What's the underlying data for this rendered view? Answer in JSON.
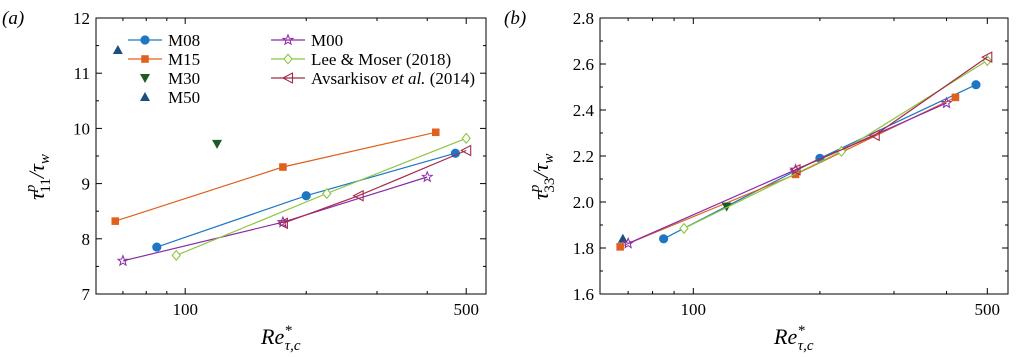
{
  "chart_data": [
    {
      "panel_label": "(a)",
      "type": "line",
      "x_scale": "log",
      "xlim": [
        60,
        560
      ],
      "ylim": [
        7,
        12
      ],
      "xticks": [
        100,
        500
      ],
      "yticks": [
        7,
        8,
        9,
        10,
        11,
        12
      ],
      "ylabel": {
        "base": "τ",
        "sup": "p",
        "sub": "11",
        "tail": "/τ",
        "tail_sub": "w"
      },
      "xlabel": {
        "base": "Re",
        "sup": "*",
        "sub": "τ,c"
      },
      "series": [
        {
          "name": "M08",
          "color": "#1f77c4",
          "marker": "circle",
          "line": true,
          "x": [
            85,
            200,
            470
          ],
          "y": [
            7.85,
            8.78,
            9.55
          ]
        },
        {
          "name": "M15",
          "color": "#e0601e",
          "marker": "square",
          "line": true,
          "x": [
            67,
            175,
            420
          ],
          "y": [
            8.32,
            9.3,
            9.93
          ]
        },
        {
          "name": "M30",
          "color": "#1d5a24",
          "marker": "triangle-down",
          "line": false,
          "x": [
            120
          ],
          "y": [
            9.72
          ]
        },
        {
          "name": "M50",
          "color": "#1a4f80",
          "marker": "triangle-up",
          "line": false,
          "x": [
            68
          ],
          "y": [
            11.42
          ]
        },
        {
          "name": "M00",
          "color": "#8a2ba8",
          "marker": "star",
          "line": true,
          "x": [
            70,
            175,
            400
          ],
          "y": [
            7.6,
            8.3,
            9.12
          ]
        },
        {
          "name": "Lee & Moser (2018)",
          "color": "#8cc63f",
          "marker": "diamond-open",
          "line": true,
          "x": [
            95,
            225,
            500
          ],
          "y": [
            7.7,
            8.82,
            9.82
          ]
        },
        {
          "name": "Avsarkisov et al. (2014)",
          "color": "#a52a4a",
          "marker": "triangle-left-open",
          "line": true,
          "x": [
            175,
            270,
            500
          ],
          "y": [
            8.28,
            8.78,
            9.6
          ]
        }
      ],
      "legend": {
        "placement": "top-left",
        "columns": [
          [
            "M08",
            "M15",
            "M30",
            "M50"
          ],
          [
            "M00",
            "Lee & Moser (2018)",
            "Avsarkisov et al. (2014)"
          ]
        ]
      }
    },
    {
      "panel_label": "(b)",
      "type": "line",
      "x_scale": "log",
      "xlim": [
        60,
        560
      ],
      "ylim": [
        1.6,
        2.8
      ],
      "xticks": [
        100,
        500
      ],
      "yticks": [
        1.6,
        1.8,
        2.0,
        2.2,
        2.4,
        2.6,
        2.8
      ],
      "ylabel": {
        "base": "τ",
        "sup": "p",
        "sub": "33",
        "tail": "/τ",
        "tail_sub": "w"
      },
      "xlabel": {
        "base": "Re",
        "sup": "*",
        "sub": "τ,c"
      },
      "series": [
        {
          "name": "M08",
          "color": "#1f77c4",
          "marker": "circle",
          "line": true,
          "x": [
            85,
            200,
            470
          ],
          "y": [
            1.84,
            2.19,
            2.51
          ]
        },
        {
          "name": "M15",
          "color": "#e0601e",
          "marker": "square",
          "line": true,
          "x": [
            67,
            175,
            420
          ],
          "y": [
            1.805,
            2.12,
            2.455
          ]
        },
        {
          "name": "M30",
          "color": "#1d5a24",
          "marker": "triangle-down",
          "line": false,
          "x": [
            120
          ],
          "y": [
            1.98
          ]
        },
        {
          "name": "M50",
          "color": "#1a4f80",
          "marker": "triangle-up",
          "line": false,
          "x": [
            68
          ],
          "y": [
            1.84
          ]
        },
        {
          "name": "M00",
          "color": "#8a2ba8",
          "marker": "star",
          "line": true,
          "x": [
            70,
            175,
            400
          ],
          "y": [
            1.82,
            2.14,
            2.43
          ]
        },
        {
          "name": "Lee & Moser (2018)",
          "color": "#8cc63f",
          "marker": "diamond-open",
          "line": true,
          "x": [
            95,
            225,
            500
          ],
          "y": [
            1.885,
            2.22,
            2.615
          ]
        },
        {
          "name": "Avsarkisov et al. (2014)",
          "color": "#a52a4a",
          "marker": "triangle-left-open",
          "line": true,
          "x": [
            175,
            270,
            500
          ],
          "y": [
            2.14,
            2.29,
            2.63
          ]
        }
      ]
    }
  ]
}
